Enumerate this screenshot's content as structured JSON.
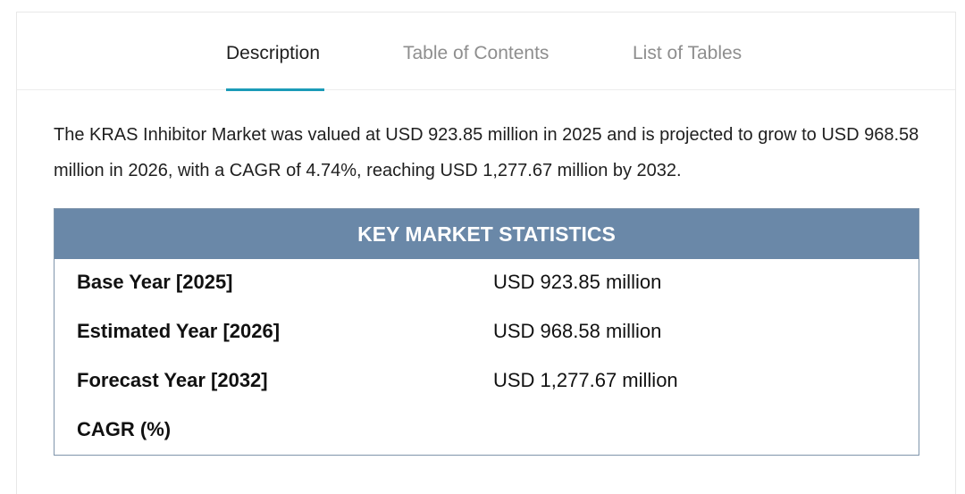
{
  "tabs": [
    {
      "label": "Description",
      "active": true
    },
    {
      "label": "Table of Contents",
      "active": false
    },
    {
      "label": "List of Tables",
      "active": false
    }
  ],
  "colors": {
    "accent": "#1b9bb8",
    "stats_header_bg": "#6a88a8",
    "inactive_tab": "#8e8e8e"
  },
  "description": {
    "intro": "The KRAS Inhibitor Market was valued at USD 923.85 million in 2025 and is projected to grow to USD 968.58 million in 2026, with a CAGR of 4.74%, reaching USD 1,277.67 million by 2032."
  },
  "stats": {
    "title": "KEY MARKET STATISTICS",
    "rows": [
      {
        "label": "Base Year [2025]",
        "value": "USD 923.85 million"
      },
      {
        "label": "Estimated Year [2026]",
        "value": "USD 968.58 million"
      },
      {
        "label": "Forecast Year [2032]",
        "value": "USD 1,277.67 million"
      },
      {
        "label": "CAGR (%)",
        "value": ""
      }
    ]
  }
}
